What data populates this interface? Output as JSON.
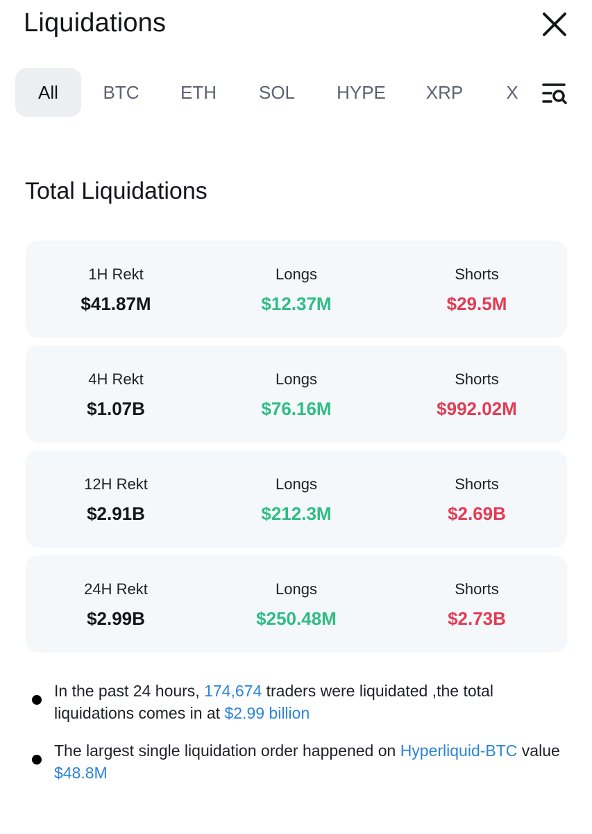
{
  "header": {
    "title": "Liquidations"
  },
  "tabs": [
    {
      "label": "All",
      "active": true
    },
    {
      "label": "BTC"
    },
    {
      "label": "ETH"
    },
    {
      "label": "SOL"
    },
    {
      "label": "HYPE"
    },
    {
      "label": "XRP"
    },
    {
      "label": "X"
    }
  ],
  "section": {
    "title": "Total Liquidations"
  },
  "cards": [
    {
      "rekt_label": "1H Rekt",
      "rekt_value": "$41.87M",
      "longs_label": "Longs",
      "longs_value": "$12.37M",
      "shorts_label": "Shorts",
      "shorts_value": "$29.5M"
    },
    {
      "rekt_label": "4H Rekt",
      "rekt_value": "$1.07B",
      "longs_label": "Longs",
      "longs_value": "$76.16M",
      "shorts_label": "Shorts",
      "shorts_value": "$992.02M"
    },
    {
      "rekt_label": "12H Rekt",
      "rekt_value": "$2.91B",
      "longs_label": "Longs",
      "longs_value": "$212.3M",
      "shorts_label": "Shorts",
      "shorts_value": "$2.69B"
    },
    {
      "rekt_label": "24H Rekt",
      "rekt_value": "$2.99B",
      "longs_label": "Longs",
      "longs_value": "$250.48M",
      "shorts_label": "Shorts",
      "shorts_value": "$2.73B"
    }
  ],
  "notes": {
    "n1_prefix": "In the past 24 hours, ",
    "n1_traders": "174,674",
    "n1_mid": " traders were liquidated ,the total liquidations comes in at ",
    "n1_total": "$2.99 billion",
    "n2_prefix": "The largest single liquidation order happened on ",
    "n2_market": "Hyperliquid-BTC",
    "n2_mid": " value ",
    "n2_value": "$48.8M"
  },
  "colors": {
    "long": "#2ebd85",
    "short": "#e33b54",
    "link": "#2b84d8",
    "card_bg": "#f5f8fa",
    "active_tab_bg": "#eceef1"
  },
  "icons": {
    "close": "close-icon",
    "filter": "search-filter-icon"
  }
}
